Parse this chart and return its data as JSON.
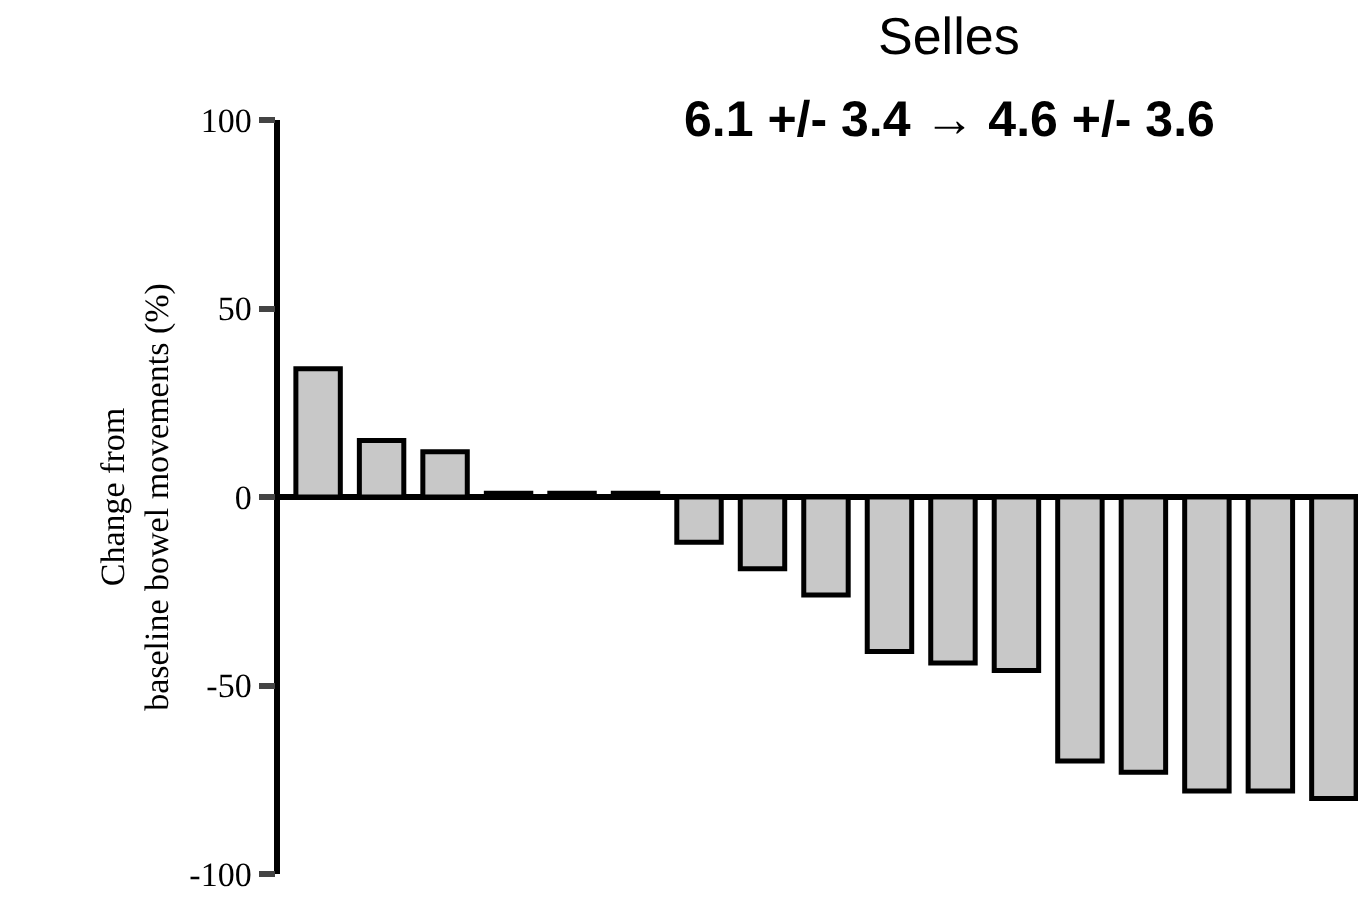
{
  "chart_data": {
    "type": "bar",
    "title": "Selles",
    "subtitle": "6.1 +/- 3.4 → 4.6 +/- 3.6",
    "ylabel": "Change from\nbaseline bowel movements (%)",
    "categories": [
      null,
      null,
      null,
      null,
      null,
      null,
      null,
      null,
      null,
      null,
      null,
      null,
      null,
      null,
      null,
      null,
      null
    ],
    "values": [
      34,
      15,
      12,
      1,
      1,
      1,
      -12,
      -19,
      -26,
      -41,
      -44,
      -46,
      -70,
      -73,
      -78,
      -78,
      -80
    ],
    "color": "#c8c8c8",
    "ylim": [
      -100,
      100
    ],
    "yticks": [
      -100,
      -50,
      0,
      50,
      100
    ],
    "legend": false,
    "tick_labels": "y"
  }
}
